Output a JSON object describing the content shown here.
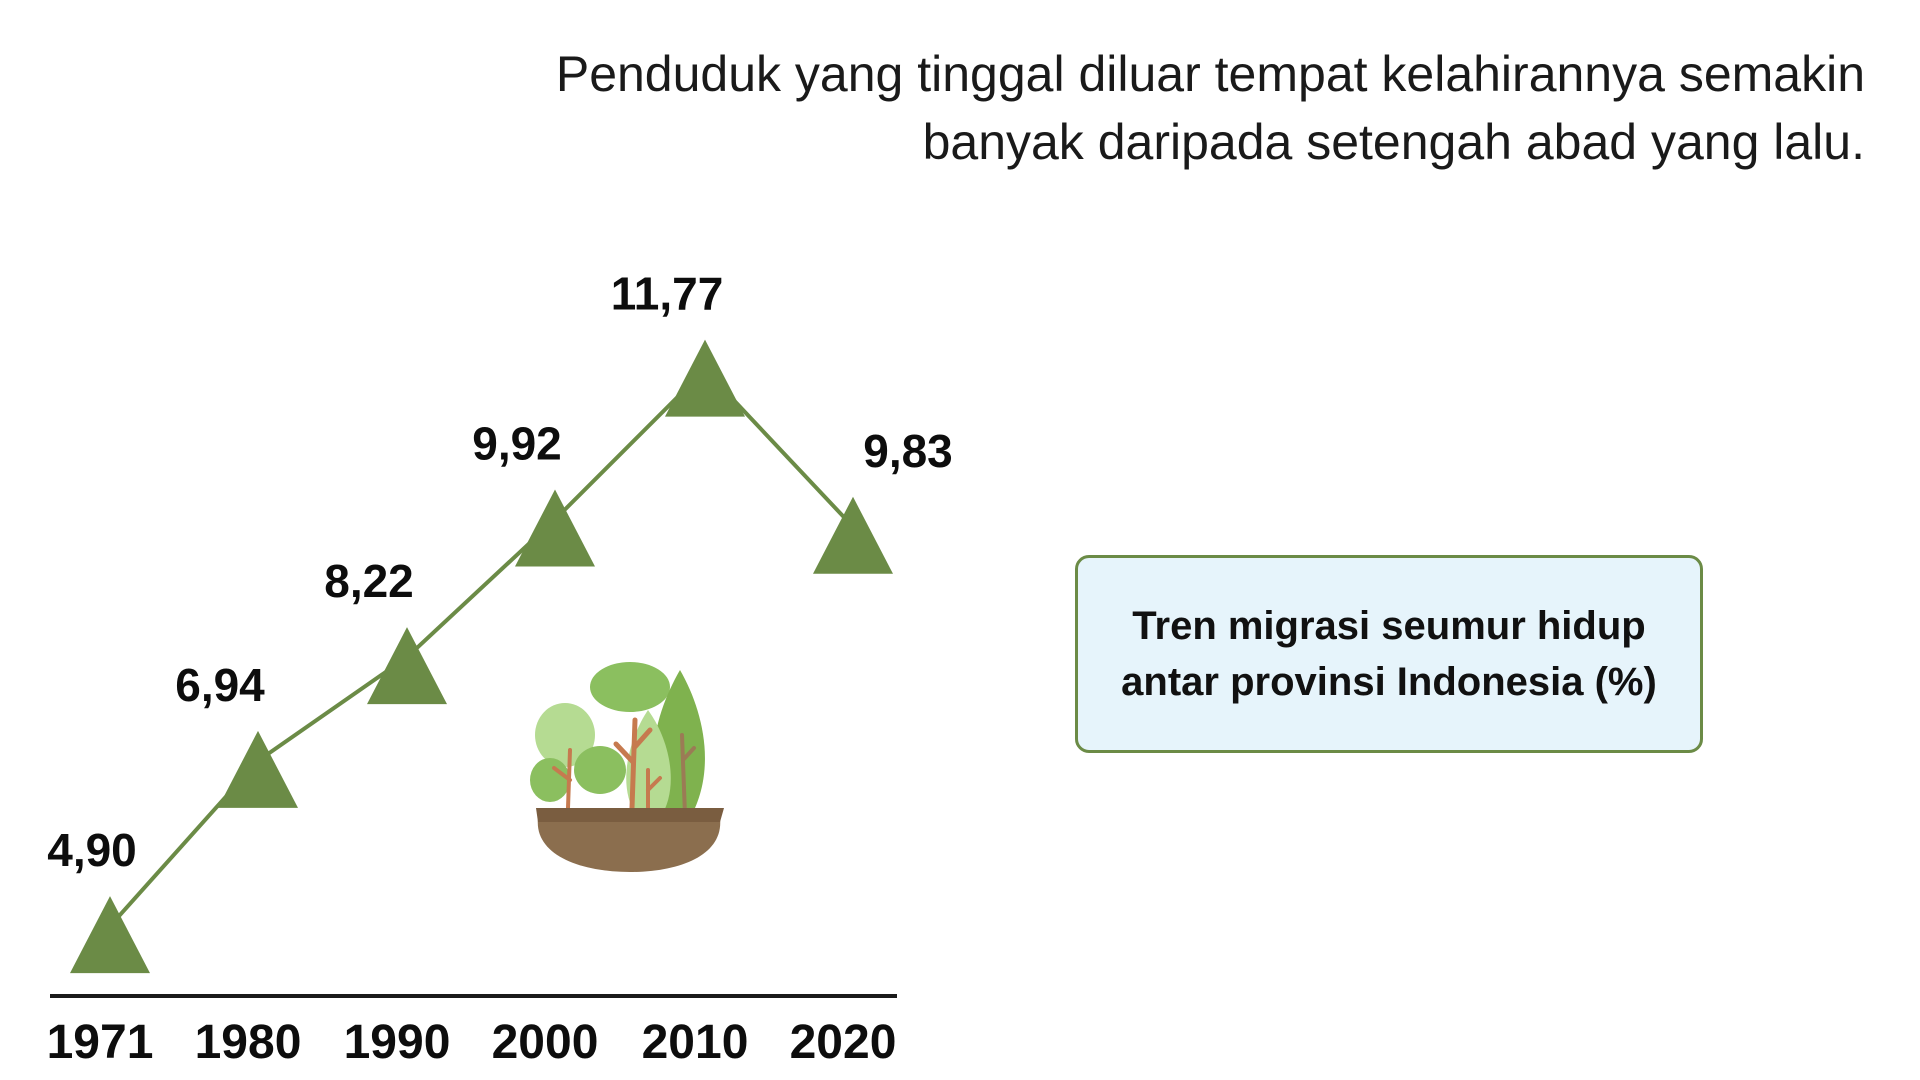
{
  "headline": {
    "line1": "Penduduk yang tinggal diluar tempat kelahirannya semakin",
    "line2": "banyak daripada setengah abad yang lalu."
  },
  "info_box": {
    "line1": "Tren migrasi seumur hidup",
    "line2": "antar provinsi Indonesia (%)"
  },
  "colors": {
    "marker": "#6b8b46",
    "line": "#6b8b46",
    "axis": "#1a1a1a",
    "box_fill": "#e6f4fb",
    "box_border": "#6b8b46"
  },
  "icons": {
    "illustration": "tree-pot-icon"
  },
  "chart_data": {
    "type": "line",
    "marker": "triangle",
    "categories": [
      "1971",
      "1980",
      "1990",
      "2000",
      "2010",
      "2020"
    ],
    "values": [
      4.9,
      6.94,
      8.22,
      9.92,
      11.77,
      9.83
    ],
    "value_labels": [
      "4,90",
      "6,94",
      "8,22",
      "9,92",
      "11,77",
      "9,83"
    ],
    "title": "",
    "xlabel": "",
    "ylabel": "",
    "grid": false,
    "legend": false
  }
}
